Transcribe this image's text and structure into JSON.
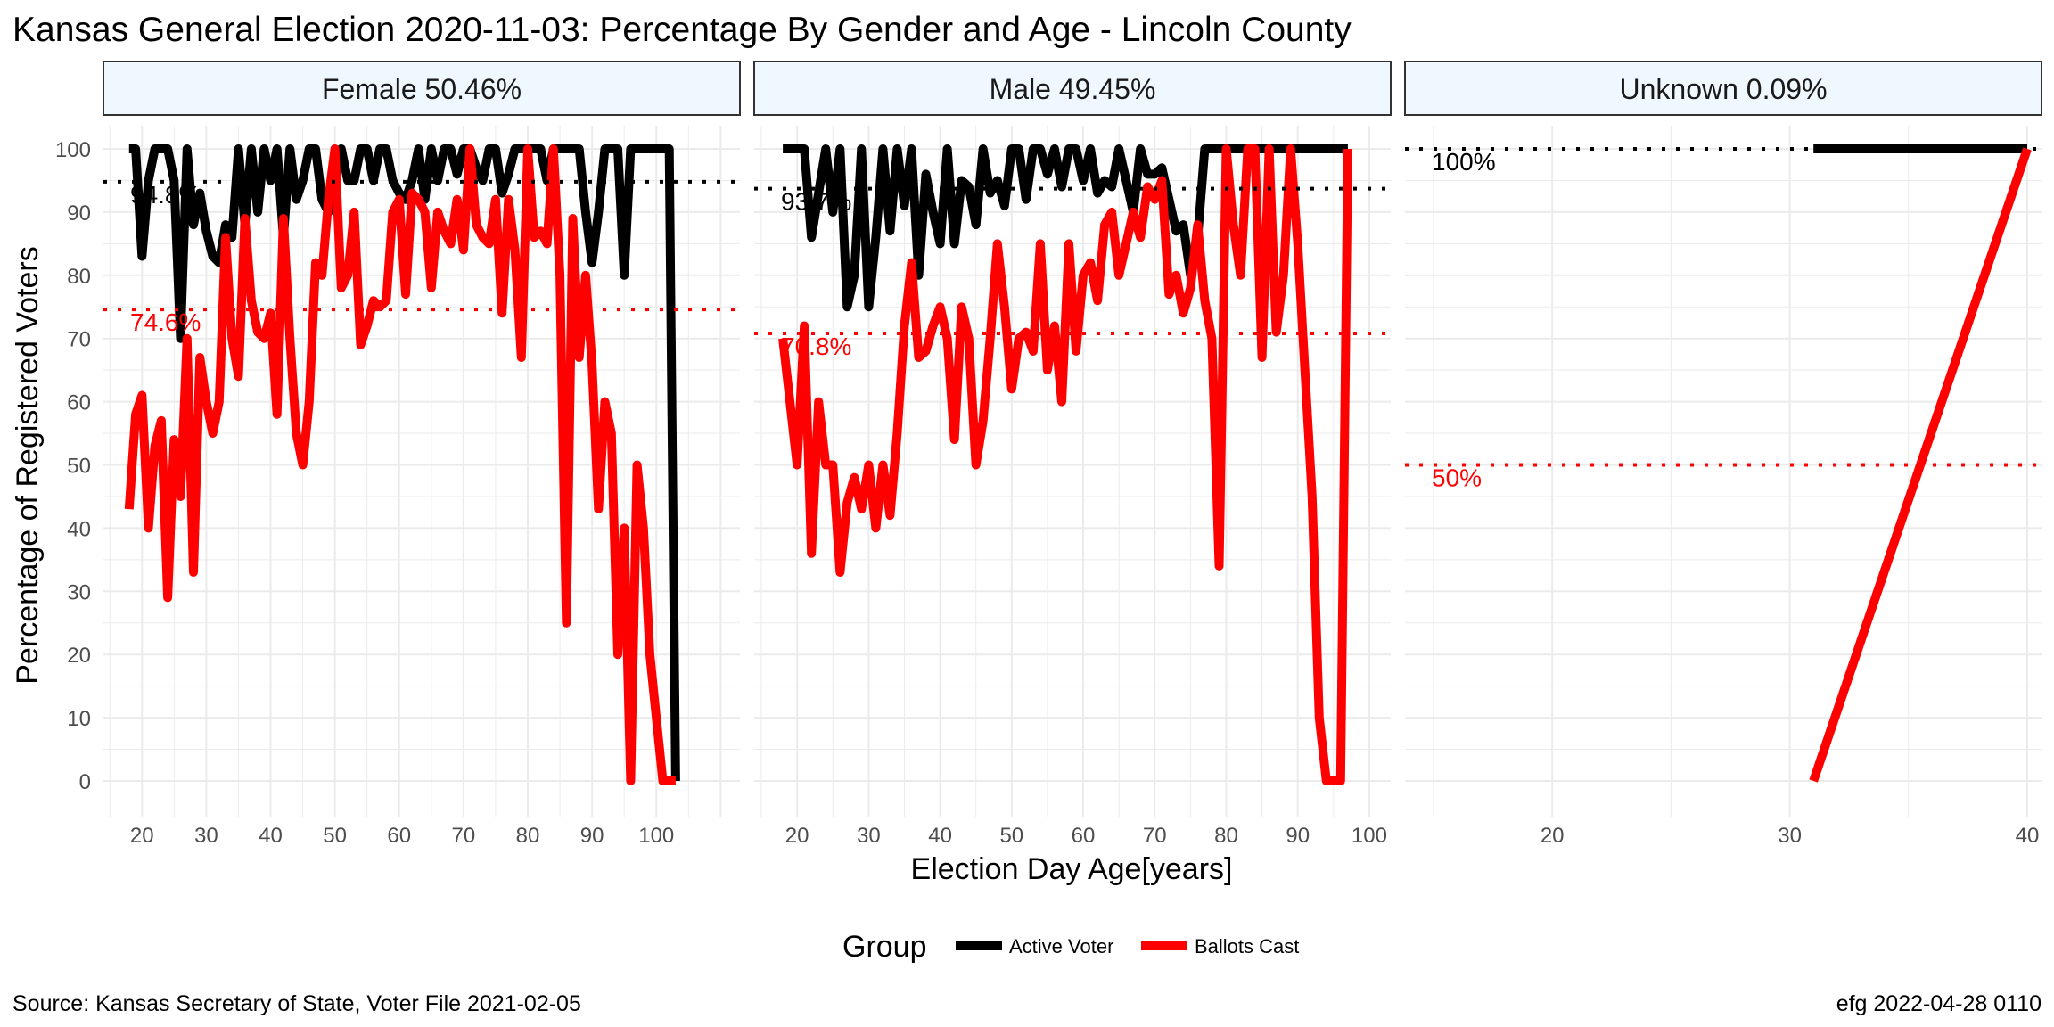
{
  "title": "Kansas General Election 2020-11-03:  Percentage By Gender and Age - Lincoln County",
  "xlabel": "Election Day Age[years]",
  "ylabel": "Percentage of Registered Voters",
  "source": "Source:  Kansas Secretary of State, Voter File  2021-02-05",
  "stamp": "efg 2022-04-28 0110",
  "legend": {
    "title": "Group",
    "items": [
      {
        "label": "Active Voter",
        "color": "#000000"
      },
      {
        "label": "Ballots Cast",
        "color": "#ff0000"
      }
    ]
  },
  "colors": {
    "strip_fill": "#f0f8ff",
    "grid": "#ebebeb",
    "active": "#000000",
    "ballots": "#ff0000"
  },
  "chart_data": {
    "type": "line",
    "ylim": [
      0,
      100
    ],
    "yticks": [
      0,
      10,
      20,
      30,
      40,
      50,
      60,
      70,
      80,
      90,
      100
    ],
    "grid": true,
    "legend_position": "bottom",
    "panels": [
      {
        "strip": "Female 50.46%",
        "xlim": [
          14,
          113
        ],
        "xticks": [
          20,
          30,
          40,
          50,
          60,
          70,
          80,
          90,
          100
        ],
        "reference": [
          {
            "value": 94.8,
            "label": "94.8%",
            "color": "#000000"
          },
          {
            "value": 74.6,
            "label": "74.6%",
            "color": "#ff0000"
          }
        ],
        "series": [
          {
            "name": "Active Voter",
            "color": "#000000",
            "x": [
              18,
              19,
              20,
              21,
              22,
              23,
              24,
              25,
              26,
              27,
              28,
              29,
              30,
              31,
              32,
              33,
              34,
              35,
              36,
              37,
              38,
              39,
              40,
              41,
              42,
              43,
              44,
              45,
              46,
              47,
              48,
              49,
              50,
              51,
              52,
              53,
              54,
              55,
              56,
              57,
              58,
              59,
              60,
              61,
              62,
              63,
              64,
              65,
              66,
              67,
              68,
              69,
              70,
              71,
              72,
              73,
              74,
              75,
              76,
              77,
              78,
              79,
              80,
              81,
              82,
              83,
              84,
              85,
              86,
              87,
              88,
              89,
              90,
              91,
              92,
              93,
              94,
              95,
              96,
              97,
              98,
              99,
              100,
              101,
              102,
              103
            ],
            "y": [
              100,
              100,
              83,
              95,
              100,
              100,
              100,
              95,
              70,
              100,
              88,
              93,
              87,
              83,
              82,
              88,
              86,
              100,
              88,
              100,
              90,
              100,
              95,
              100,
              86,
              100,
              92,
              95,
              100,
              100,
              92,
              90,
              95,
              100,
              95,
              95,
              100,
              100,
              95,
              100,
              100,
              95,
              93,
              92,
              95,
              100,
              92,
              100,
              95,
              100,
              100,
              96,
              100,
              100,
              97,
              95,
              100,
              100,
              93,
              96,
              100,
              100,
              100,
              100,
              100,
              95,
              100,
              100,
              100,
              100,
              100,
              90,
              82,
              90,
              100,
              100,
              100,
              80,
              100,
              100,
              100,
              100,
              100,
              100,
              100,
              0
            ]
          },
          {
            "name": "Ballots Cast",
            "color": "#ff0000",
            "x": [
              18,
              19,
              20,
              21,
              22,
              23,
              24,
              25,
              26,
              27,
              28,
              29,
              30,
              31,
              32,
              33,
              34,
              35,
              36,
              37,
              38,
              39,
              40,
              41,
              42,
              43,
              44,
              45,
              46,
              47,
              48,
              49,
              50,
              51,
              52,
              53,
              54,
              55,
              56,
              57,
              58,
              59,
              60,
              61,
              62,
              63,
              64,
              65,
              66,
              67,
              68,
              69,
              70,
              71,
              72,
              73,
              74,
              75,
              76,
              77,
              78,
              79,
              80,
              81,
              82,
              83,
              84,
              85,
              86,
              87,
              88,
              89,
              90,
              91,
              92,
              93,
              94,
              95,
              96,
              97,
              98,
              99,
              100,
              101,
              102,
              103
            ],
            "y": [
              43,
              58,
              61,
              40,
              53,
              57,
              29,
              54,
              45,
              70,
              33,
              67,
              60,
              55,
              60,
              86,
              70,
              64,
              89,
              76,
              71,
              70,
              74,
              58,
              89,
              70,
              55,
              50,
              60,
              82,
              80,
              92,
              100,
              78,
              80,
              90,
              69,
              72,
              76,
              75,
              76,
              90,
              92,
              77,
              93,
              92,
              90,
              78,
              90,
              87,
              85,
              92,
              84,
              100,
              88,
              86,
              85,
              92,
              74,
              92,
              84,
              67,
              100,
              86,
              87,
              85,
              100,
              80,
              25,
              89,
              67,
              80,
              66,
              43,
              60,
              55,
              20,
              40,
              0,
              50,
              40,
              20,
              10,
              0,
              0,
              0
            ]
          }
        ]
      },
      {
        "strip": "Male 49.45%",
        "xlim": [
          14,
          103
        ],
        "xticks": [
          20,
          30,
          40,
          50,
          60,
          70,
          80,
          90,
          100
        ],
        "reference": [
          {
            "value": 93.7,
            "label": "93.7%",
            "color": "#000000"
          },
          {
            "value": 70.8,
            "label": "70.8%",
            "color": "#ff0000"
          }
        ],
        "series": [
          {
            "name": "Active Voter",
            "color": "#000000",
            "x": [
              18,
              19,
              20,
              21,
              22,
              23,
              24,
              25,
              26,
              27,
              28,
              29,
              30,
              31,
              32,
              33,
              34,
              35,
              36,
              37,
              38,
              39,
              40,
              41,
              42,
              43,
              44,
              45,
              46,
              47,
              48,
              49,
              50,
              51,
              52,
              53,
              54,
              55,
              56,
              57,
              58,
              59,
              60,
              61,
              62,
              63,
              64,
              65,
              66,
              67,
              68,
              69,
              70,
              71,
              72,
              73,
              74,
              75,
              76,
              77,
              78,
              79,
              80,
              81,
              82,
              83,
              84,
              85,
              86,
              87,
              88,
              89,
              90,
              91,
              92,
              93,
              94,
              95,
              96,
              97
            ],
            "y": [
              100,
              100,
              100,
              100,
              86,
              93,
              100,
              90,
              100,
              75,
              80,
              100,
              75,
              86,
              100,
              87,
              100,
              91,
              100,
              80,
              96,
              90,
              85,
              100,
              85,
              95,
              94,
              88,
              100,
              93,
              95,
              91,
              100,
              100,
              92,
              100,
              100,
              96,
              100,
              94,
              100,
              100,
              95,
              100,
              93,
              95,
              94,
              100,
              95,
              90,
              100,
              96,
              96,
              97,
              92,
              87,
              88,
              80,
              86,
              100,
              100,
              100,
              100,
              100,
              100,
              100,
              100,
              100,
              100,
              100,
              100,
              100,
              100,
              100,
              100,
              100,
              100,
              100,
              100,
              100
            ]
          },
          {
            "name": "Ballots Cast",
            "color": "#ff0000",
            "x": [
              18,
              19,
              20,
              21,
              22,
              23,
              24,
              25,
              26,
              27,
              28,
              29,
              30,
              31,
              32,
              33,
              34,
              35,
              36,
              37,
              38,
              39,
              40,
              41,
              42,
              43,
              44,
              45,
              46,
              47,
              48,
              49,
              50,
              51,
              52,
              53,
              54,
              55,
              56,
              57,
              58,
              59,
              60,
              61,
              62,
              63,
              64,
              65,
              66,
              67,
              68,
              69,
              70,
              71,
              72,
              73,
              74,
              75,
              76,
              77,
              78,
              79,
              80,
              81,
              82,
              83,
              84,
              85,
              86,
              87,
              88,
              89,
              90,
              91,
              92,
              93,
              94,
              95,
              96,
              97
            ],
            "y": [
              70,
              60,
              50,
              72,
              36,
              60,
              50,
              50,
              33,
              44,
              48,
              43,
              50,
              40,
              50,
              42,
              55,
              72,
              82,
              67,
              68,
              72,
              75,
              70,
              54,
              75,
              70,
              50,
              57,
              70,
              85,
              75,
              62,
              70,
              71,
              68,
              85,
              65,
              72,
              60,
              85,
              68,
              80,
              82,
              76,
              88,
              90,
              80,
              85,
              90,
              86,
              94,
              92,
              95,
              77,
              80,
              74,
              78,
              88,
              76,
              70,
              34,
              100,
              88,
              80,
              100,
              100,
              67,
              100,
              71,
              80,
              100,
              85,
              65,
              45,
              10,
              0,
              0,
              0,
              100
            ]
          }
        ]
      },
      {
        "strip": "Unknown 0.09%",
        "xlim": [
          13.8,
          40.6
        ],
        "xticks": [
          20,
          30,
          40
        ],
        "reference": [
          {
            "value": 100,
            "label": "100%",
            "color": "#000000"
          },
          {
            "value": 50,
            "label": "50%",
            "color": "#ff0000"
          }
        ],
        "series": [
          {
            "name": "Active Voter",
            "color": "#000000",
            "x": [
              31,
              40
            ],
            "y": [
              100,
              100
            ]
          },
          {
            "name": "Ballots Cast",
            "color": "#ff0000",
            "x": [
              31,
              40
            ],
            "y": [
              0,
              100
            ]
          }
        ]
      }
    ]
  }
}
